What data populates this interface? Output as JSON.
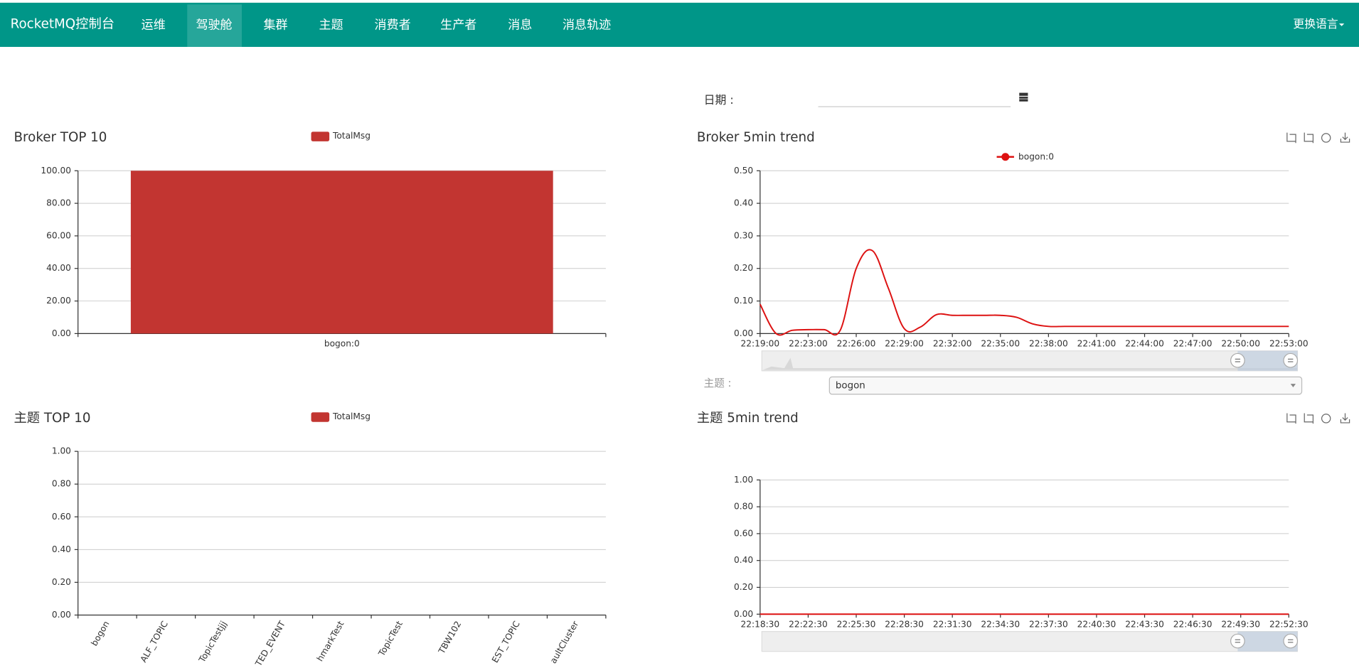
{
  "nav": {
    "brand": "RocketMQ控制台",
    "items": [
      "运维",
      "驾驶舱",
      "集群",
      "主题",
      "消费者",
      "生产者",
      "消息",
      "消息轨迹"
    ],
    "active": "驾驶舱",
    "language": "更换语言"
  },
  "date_label": "日期 :",
  "topic_select": {
    "label": "主题 :",
    "value": "bogon"
  },
  "chart_data": [
    {
      "type": "bar",
      "title": "Broker TOP 10",
      "categories": [
        "bogon:0"
      ],
      "series": [
        {
          "name": "TotalMsg",
          "color": "#c23531",
          "values": [
            100
          ]
        }
      ],
      "ylim": [
        0,
        100
      ],
      "yticks": [
        {
          "value": 0,
          "label": "0.00"
        },
        {
          "value": 20,
          "label": "20.00"
        },
        {
          "value": 40,
          "label": "40.00"
        },
        {
          "value": 60,
          "label": "60.00"
        },
        {
          "value": 80,
          "label": "80.00"
        },
        {
          "value": 100,
          "label": "100.00"
        }
      ],
      "grid": true
    },
    {
      "type": "line",
      "title": "Broker 5min trend",
      "categories": [
        "22:19:00",
        null,
        null,
        "22:23:00",
        null,
        null,
        "22:26:00",
        null,
        null,
        "22:29:00",
        null,
        null,
        "22:32:00",
        null,
        null,
        "22:35:00",
        null,
        null,
        "22:38:00",
        null,
        null,
        "22:41:00",
        null,
        null,
        "22:44:00",
        null,
        null,
        "22:47:00",
        null,
        null,
        "22:50:00",
        null,
        null,
        "22:53:00"
      ],
      "series": [
        {
          "name": "bogon:0",
          "color": "#dd1111",
          "values": [
            0.09,
            0.0,
            0.01,
            0.012,
            0.012,
            0.01,
            0.2,
            0.255,
            0.14,
            0.015,
            0.02,
            0.058,
            0.056,
            0.056,
            0.056,
            0.056,
            0.05,
            0.03,
            0.022,
            0.022,
            0.022,
            0.022,
            0.022,
            0.022,
            0.022,
            0.022,
            0.022,
            0.022,
            0.022,
            0.022,
            0.022,
            0.022,
            0.022,
            0.022
          ]
        }
      ],
      "ylim": [
        0,
        0.5
      ],
      "yticks": [
        {
          "value": 0,
          "label": "0.00"
        },
        {
          "value": 0.1,
          "label": "0.10"
        },
        {
          "value": 0.2,
          "label": "0.20"
        },
        {
          "value": 0.3,
          "label": "0.30"
        },
        {
          "value": 0.4,
          "label": "0.40"
        },
        {
          "value": 0.5,
          "label": "0.50"
        }
      ],
      "grid": true
    },
    {
      "type": "bar",
      "title": "主题 TOP 10",
      "categories": [
        "bogon",
        "ALF_TOPIC",
        "TopicTestjjj",
        "TED_EVENT",
        "hmarkTest",
        "TopicTest",
        "TBW102",
        "EST_TOPIC",
        "aultCluster"
      ],
      "series": [
        {
          "name": "TotalMsg",
          "color": "#c23531",
          "values": [
            0,
            0,
            0,
            0,
            0,
            0,
            0,
            0,
            0
          ]
        }
      ],
      "ylim": [
        0,
        1
      ],
      "yticks": [
        {
          "value": 0,
          "label": "0.00"
        },
        {
          "value": 0.2,
          "label": "0.20"
        },
        {
          "value": 0.4,
          "label": "0.40"
        },
        {
          "value": 0.6,
          "label": "0.60"
        },
        {
          "value": 0.8,
          "label": "0.80"
        },
        {
          "value": 1,
          "label": "1.00"
        }
      ],
      "grid": true
    },
    {
      "type": "line",
      "title": "主题 5min trend",
      "categories": [
        "22:18:30",
        "22:22:30",
        "22:25:30",
        "22:28:30",
        "22:31:30",
        "22:34:30",
        "22:37:30",
        "22:40:30",
        "22:43:30",
        "22:46:30",
        "22:49:30",
        "22:52:30"
      ],
      "color": "#dd1111",
      "values": [
        0,
        0,
        0,
        0,
        0,
        0,
        0,
        0,
        0,
        0,
        0,
        0
      ],
      "ylim": [
        0,
        1
      ],
      "yticks": [
        {
          "value": 0,
          "label": "0.00"
        },
        {
          "value": 0.2,
          "label": "0.20"
        },
        {
          "value": 0.4,
          "label": "0.40"
        },
        {
          "value": 0.6,
          "label": "0.60"
        },
        {
          "value": 0.8,
          "label": "0.80"
        },
        {
          "value": 1,
          "label": "1.00"
        }
      ],
      "grid": true
    }
  ]
}
